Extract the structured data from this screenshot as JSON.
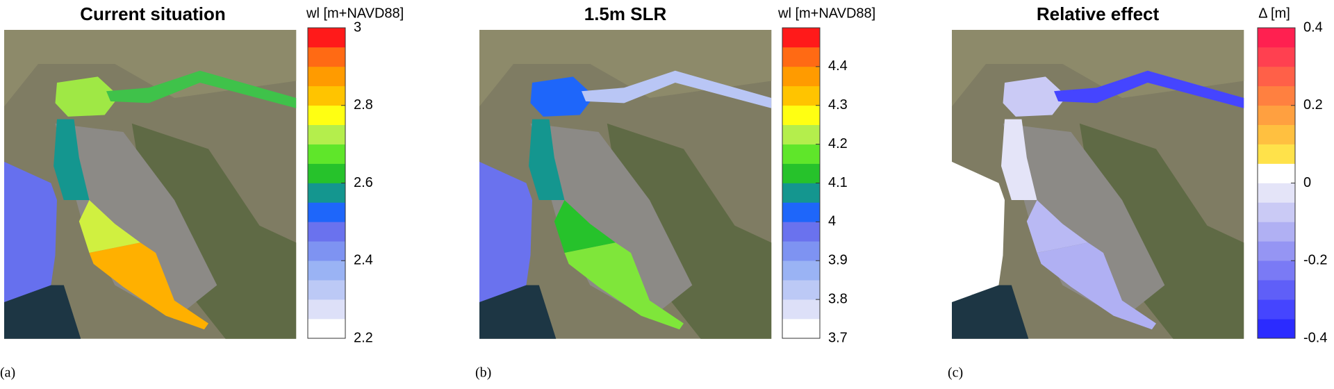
{
  "panels": [
    {
      "label": "(a)",
      "title": "Current situation",
      "colorbar": {
        "label": "wl [m+NAVD88]",
        "clim": [
          2.2,
          3
        ],
        "ticks": [
          2.2,
          2.4,
          2.6,
          2.8,
          3
        ],
        "colors": [
          "#ffffff",
          "#dde0f8",
          "#bcc9f6",
          "#9ab3f4",
          "#7e93f2",
          "#6a72ee",
          "#1e66fa",
          "#14968f",
          "#26c22b",
          "#5fe62a",
          "#b4ee4c",
          "#ffff12",
          "#ffc400",
          "#ff9b00",
          "#ff6a14",
          "#ff1a1a"
        ]
      }
    },
    {
      "label": "(b)",
      "title": "1.5m SLR",
      "colorbar": {
        "label": "wl [m+NAVD88]",
        "clim": [
          3.7,
          4.5
        ],
        "ticks": [
          3.7,
          3.8,
          3.9,
          4,
          4.1,
          4.2,
          4.3,
          4.4
        ],
        "colors": [
          "#ffffff",
          "#dde0f8",
          "#bcc9f6",
          "#9ab3f4",
          "#7e93f2",
          "#6a72ee",
          "#1e66fa",
          "#14968f",
          "#26c22b",
          "#5fe62a",
          "#b4ee4c",
          "#ffff12",
          "#ffc400",
          "#ff9b00",
          "#ff6a14",
          "#ff1a1a"
        ]
      }
    },
    {
      "label": "(c)",
      "title": "Relative effect",
      "colorbar": {
        "label": "Δ [m]",
        "clim": [
          -0.4,
          0.4
        ],
        "ticks": [
          -0.4,
          -0.2,
          0,
          0.2,
          0.4
        ],
        "colors": [
          "#2b2bff",
          "#4545ff",
          "#5f5ff8",
          "#7a7af5",
          "#9595f3",
          "#b0b0f3",
          "#cacaf5",
          "#e4e4f8",
          "#ffffff",
          "#ffe24a",
          "#ffc040",
          "#ffa040",
          "#ff8040",
          "#ff6048",
          "#ff4050",
          "#ff2050"
        ]
      }
    }
  ]
}
